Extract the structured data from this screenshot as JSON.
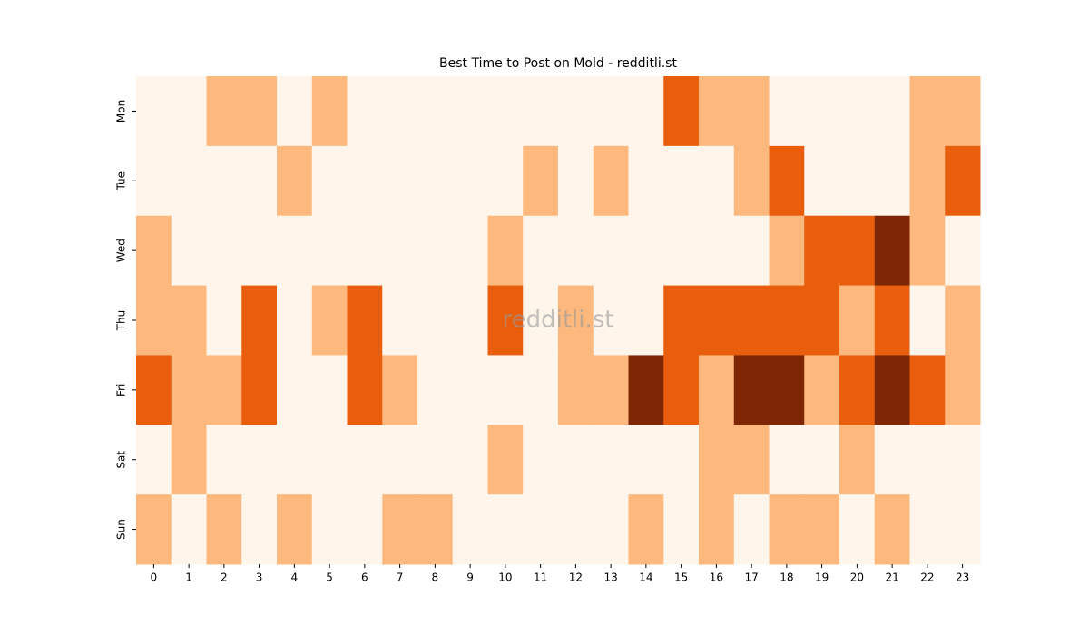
{
  "chart_data": {
    "type": "heatmap",
    "title": "Best Time to Post on Mold - redditli.st",
    "watermark": "redditli.st",
    "x_categories": [
      "0",
      "1",
      "2",
      "3",
      "4",
      "5",
      "6",
      "7",
      "8",
      "9",
      "10",
      "11",
      "12",
      "13",
      "14",
      "15",
      "16",
      "17",
      "18",
      "19",
      "20",
      "21",
      "22",
      "23"
    ],
    "y_categories": [
      "Mon",
      "Tue",
      "Wed",
      "Thu",
      "Fri",
      "Sat",
      "Sun"
    ],
    "colormap": [
      "#fff5eb",
      "#fdb97d",
      "#e95e0d",
      "#7f2704"
    ],
    "vlim": [
      0,
      3
    ],
    "values": [
      [
        0,
        0,
        1,
        1,
        0,
        1,
        0,
        0,
        0,
        0,
        0,
        0,
        0,
        0,
        0,
        2,
        1,
        1,
        0,
        0,
        0,
        0,
        1,
        1
      ],
      [
        0,
        0,
        0,
        0,
        1,
        0,
        0,
        0,
        0,
        0,
        0,
        1,
        0,
        1,
        0,
        0,
        0,
        1,
        2,
        0,
        0,
        0,
        1,
        2
      ],
      [
        1,
        0,
        0,
        0,
        0,
        0,
        0,
        0,
        0,
        0,
        1,
        0,
        0,
        0,
        0,
        0,
        0,
        0,
        1,
        2,
        2,
        3,
        1,
        0
      ],
      [
        1,
        1,
        0,
        2,
        0,
        1,
        2,
        0,
        0,
        0,
        2,
        0,
        1,
        0,
        0,
        2,
        2,
        2,
        2,
        2,
        1,
        2,
        0,
        1
      ],
      [
        2,
        1,
        1,
        2,
        0,
        0,
        2,
        1,
        0,
        0,
        0,
        0,
        1,
        1,
        3,
        2,
        1,
        3,
        3,
        1,
        2,
        3,
        2,
        1
      ],
      [
        0,
        1,
        0,
        0,
        0,
        0,
        0,
        0,
        0,
        0,
        1,
        0,
        0,
        0,
        0,
        0,
        1,
        1,
        0,
        0,
        1,
        0,
        0,
        0
      ],
      [
        1,
        0,
        1,
        0,
        1,
        0,
        0,
        1,
        1,
        0,
        0,
        0,
        0,
        0,
        1,
        0,
        1,
        0,
        1,
        1,
        0,
        1,
        0,
        0
      ]
    ]
  }
}
